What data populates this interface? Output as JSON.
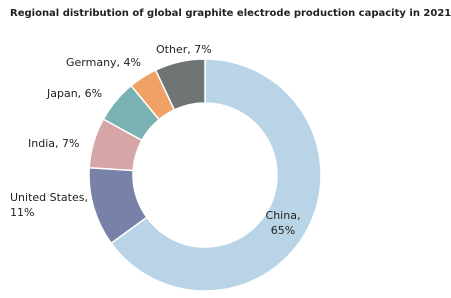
{
  "chart_data": {
    "type": "donut",
    "title": "Regional distribution of global graphite electrode production capacity in 2021",
    "values": [
      65,
      11,
      7,
      6,
      4,
      7
    ],
    "value_labels": [
      "China, 65%",
      "United States, 11%",
      "India, 7%",
      "Japan, 6%",
      "Germany, 4%",
      "Other, 7%"
    ],
    "colors": [
      "#b8d4e6",
      "#7881a8",
      "#d6a5a5",
      "#7ab1b2",
      "#f0a166",
      "#6e7574"
    ]
  }
}
